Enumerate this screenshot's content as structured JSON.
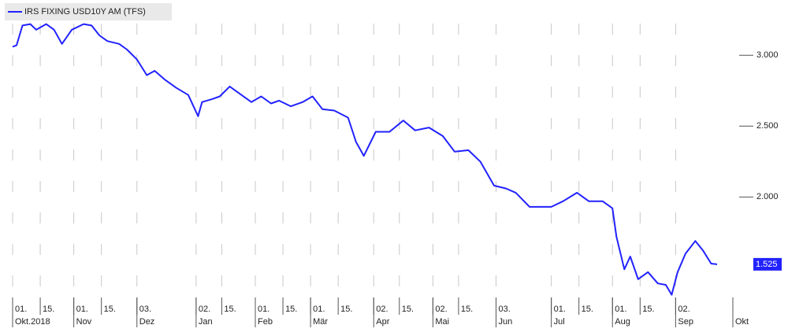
{
  "chart_data": {
    "type": "line",
    "xlim": [
      "2018-10-01",
      "2019-10-01"
    ],
    "ylim": [
      1.28,
      3.39
    ],
    "yticks": [
      {
        "value": 2,
        "label": "2.000"
      },
      {
        "value": 2.5,
        "label": "2.500"
      },
      {
        "value": 3,
        "label": "3.000"
      }
    ],
    "xticks": [
      {
        "value": "2018-10-01",
        "label": "01."
      },
      {
        "value": "2018-10-15",
        "label": "15."
      },
      {
        "value": "2018-11-01",
        "label": "01."
      },
      {
        "value": "2018-11-15",
        "label": "15."
      },
      {
        "value": "2018-12-03",
        "label": "03."
      },
      {
        "value": "2019-01-02",
        "label": "02."
      },
      {
        "value": "2019-01-15",
        "label": "15."
      },
      {
        "value": "2019-02-01",
        "label": "01."
      },
      {
        "value": "2019-02-15",
        "label": "15."
      },
      {
        "value": "2019-03-01",
        "label": "01."
      },
      {
        "value": "2019-03-15",
        "label": "15."
      },
      {
        "value": "2019-04-02",
        "label": "02."
      },
      {
        "value": "2019-04-15",
        "label": "15."
      },
      {
        "value": "2019-05-02",
        "label": "02."
      },
      {
        "value": "2019-05-15",
        "label": "15."
      },
      {
        "value": "2019-06-03",
        "label": "03."
      },
      {
        "value": "2019-07-01",
        "label": "01."
      },
      {
        "value": "2019-07-15",
        "label": "15."
      },
      {
        "value": "2019-08-01",
        "label": "01."
      },
      {
        "value": "2019-08-15",
        "label": "15."
      },
      {
        "value": "2019-09-02",
        "label": "02."
      }
    ],
    "x_month_labels": [
      {
        "value": "2018-10-01",
        "label": "Okt.2018"
      },
      {
        "value": "2018-11-01",
        "label": "Nov"
      },
      {
        "value": "2018-12-03",
        "label": "Dez"
      },
      {
        "value": "2019-01-02",
        "label": "Jan"
      },
      {
        "value": "2019-02-01",
        "label": "Feb"
      },
      {
        "value": "2019-03-01",
        "label": "Mär"
      },
      {
        "value": "2019-04-02",
        "label": "Apr"
      },
      {
        "value": "2019-05-02",
        "label": "Mai"
      },
      {
        "value": "2019-06-03",
        "label": "Jun"
      },
      {
        "value": "2019-07-01",
        "label": "Jul"
      },
      {
        "value": "2019-08-01",
        "label": "Aug"
      },
      {
        "value": "2019-09-02",
        "label": "Sep"
      },
      {
        "value": "2019-10-01",
        "label": "Okt"
      }
    ],
    "grid": true,
    "legend": "top-left",
    "x": [
      "2018-10-01",
      "2018-10-03",
      "2018-10-06",
      "2018-10-10",
      "2018-10-13",
      "2018-10-18",
      "2018-10-22",
      "2018-10-26",
      "2018-10-31",
      "2018-11-06",
      "2018-11-10",
      "2018-11-14",
      "2018-11-18",
      "2018-11-24",
      "2018-11-28",
      "2018-12-03",
      "2018-12-08",
      "2018-12-12",
      "2018-12-17",
      "2018-12-23",
      "2018-12-29",
      "2019-01-03",
      "2019-01-05",
      "2019-01-10",
      "2019-01-14",
      "2019-01-19",
      "2019-01-24",
      "2019-01-30",
      "2019-02-04",
      "2019-02-09",
      "2019-02-13",
      "2019-02-19",
      "2019-02-25",
      "2019-03-02",
      "2019-03-07",
      "2019-03-13",
      "2019-03-20",
      "2019-03-24",
      "2019-03-28",
      "2019-04-03",
      "2019-04-10",
      "2019-04-17",
      "2019-04-23",
      "2019-04-30",
      "2019-05-07",
      "2019-05-13",
      "2019-05-20",
      "2019-05-26",
      "2019-06-02",
      "2019-06-08",
      "2019-06-13",
      "2019-06-20",
      "2019-06-25",
      "2019-07-01",
      "2019-07-07",
      "2019-07-14",
      "2019-07-20",
      "2019-07-27",
      "2019-08-01",
      "2019-08-03",
      "2019-08-07",
      "2019-08-10",
      "2019-08-14",
      "2019-08-19",
      "2019-08-24",
      "2019-08-28",
      "2019-08-31",
      "2019-09-03",
      "2019-09-07",
      "2019-09-12",
      "2019-09-16",
      "2019-09-20",
      "2019-09-23"
    ],
    "series": [
      {
        "name": "IRS FIXING USD10Y AM (TFS)",
        "color": "#2222ff",
        "last_label": "1.525",
        "values": [
          3.06,
          3.07,
          3.21,
          3.22,
          3.18,
          3.22,
          3.18,
          3.08,
          3.18,
          3.22,
          3.21,
          3.14,
          3.1,
          3.08,
          3.04,
          2.97,
          2.86,
          2.89,
          2.83,
          2.77,
          2.72,
          2.57,
          2.67,
          2.69,
          2.71,
          2.78,
          2.73,
          2.67,
          2.71,
          2.66,
          2.68,
          2.64,
          2.67,
          2.71,
          2.62,
          2.61,
          2.56,
          2.39,
          2.29,
          2.46,
          2.46,
          2.54,
          2.47,
          2.49,
          2.43,
          2.32,
          2.33,
          2.25,
          2.08,
          2.06,
          2.03,
          1.93,
          1.93,
          1.93,
          1.97,
          2.03,
          1.97,
          1.97,
          1.92,
          1.72,
          1.49,
          1.58,
          1.42,
          1.47,
          1.39,
          1.38,
          1.31,
          1.47,
          1.6,
          1.69,
          1.62,
          1.53,
          1.525
        ]
      }
    ]
  }
}
